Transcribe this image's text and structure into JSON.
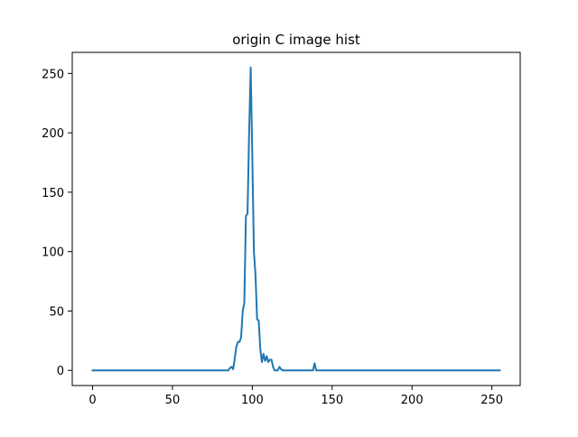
{
  "chart_data": {
    "type": "line",
    "title": "origin C image hist",
    "xlabel": "",
    "ylabel": "",
    "xlim": [
      -12.75,
      267.75
    ],
    "ylim": [
      -12.75,
      267.75
    ],
    "xticks": [
      0,
      50,
      100,
      150,
      200,
      250
    ],
    "yticks": [
      0,
      50,
      100,
      150,
      200,
      250
    ],
    "xtick_labels": [
      "0",
      "50",
      "100",
      "150",
      "200",
      "250"
    ],
    "ytick_labels": [
      "0",
      "50",
      "100",
      "150",
      "200",
      "250"
    ],
    "grid": false,
    "legend": "none",
    "series": [
      {
        "color": "#1f77b4",
        "points": [
          [
            0,
            0
          ],
          [
            85,
            0
          ],
          [
            86,
            2
          ],
          [
            87,
            3
          ],
          [
            88,
            1
          ],
          [
            89,
            10
          ],
          [
            90,
            20
          ],
          [
            91,
            24
          ],
          [
            92,
            24
          ],
          [
            93,
            28
          ],
          [
            94,
            50
          ],
          [
            95,
            57
          ],
          [
            96,
            130
          ],
          [
            97,
            132
          ],
          [
            98,
            200
          ],
          [
            99,
            255
          ],
          [
            100,
            180
          ],
          [
            101,
            100
          ],
          [
            102,
            80
          ],
          [
            103,
            43
          ],
          [
            104,
            42
          ],
          [
            105,
            18
          ],
          [
            106,
            7
          ],
          [
            107,
            14
          ],
          [
            108,
            8
          ],
          [
            109,
            12
          ],
          [
            110,
            7
          ],
          [
            111,
            9
          ],
          [
            112,
            9
          ],
          [
            113,
            3
          ],
          [
            114,
            0
          ],
          [
            115,
            0
          ],
          [
            116,
            0
          ],
          [
            117,
            3
          ],
          [
            118,
            1
          ],
          [
            119,
            0
          ],
          [
            138,
            0
          ],
          [
            139,
            6
          ],
          [
            140,
            0
          ],
          [
            255,
            0
          ]
        ]
      }
    ]
  }
}
